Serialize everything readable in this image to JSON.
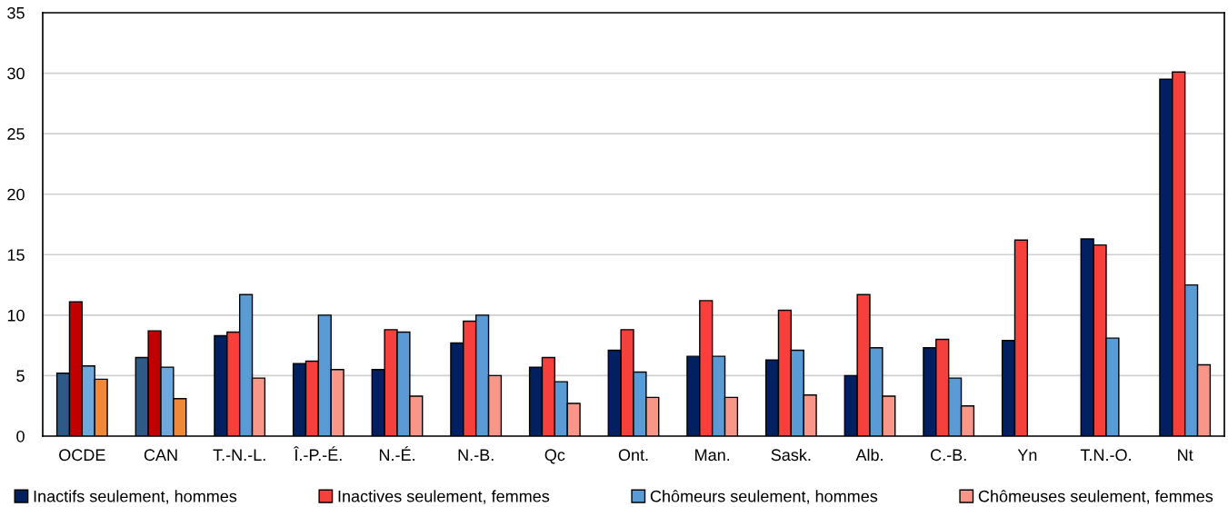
{
  "chart_data": {
    "type": "bar",
    "categories": [
      "OCDE",
      "CAN",
      "T.-N.-L.",
      "Î.-P.-É.",
      "N.-É.",
      "N.-B.",
      "Qc",
      "Ont.",
      "Man.",
      "Sask.",
      "Alb.",
      "C.-B.",
      "Yn",
      "T.N.-O.",
      "Nt"
    ],
    "series": [
      {
        "name": "Inactifs seulement, hommes",
        "color": "#002060",
        "colors": [
          "#2e5a87",
          "#2e5a87",
          "#002060",
          "#002060",
          "#002060",
          "#002060",
          "#002060",
          "#002060",
          "#002060",
          "#002060",
          "#002060",
          "#002060",
          "#002060",
          "#002060",
          "#002060"
        ],
        "values": [
          5.2,
          6.5,
          8.3,
          6.0,
          5.5,
          7.7,
          5.7,
          7.1,
          6.6,
          6.3,
          5.0,
          7.3,
          7.9,
          16.3,
          29.5
        ]
      },
      {
        "name": "Inactives seulement, femmes",
        "color": "#f5403c",
        "colors": [
          "#c00000",
          "#c00000",
          "#f5403c",
          "#f5403c",
          "#f5403c",
          "#f5403c",
          "#f5403c",
          "#f5403c",
          "#f5403c",
          "#f5403c",
          "#f5403c",
          "#f5403c",
          "#f5403c",
          "#f5403c",
          "#f5403c"
        ],
        "values": [
          11.1,
          8.7,
          8.6,
          6.2,
          8.8,
          9.5,
          6.5,
          8.8,
          11.2,
          10.4,
          11.7,
          8.0,
          16.2,
          15.8,
          30.1
        ]
      },
      {
        "name": "Chômeurs seulement, hommes",
        "color": "#5b9bd5",
        "colors": [
          "#6fa8dc",
          "#6fa8dc",
          "#5b9bd5",
          "#5b9bd5",
          "#5b9bd5",
          "#5b9bd5",
          "#5b9bd5",
          "#5b9bd5",
          "#5b9bd5",
          "#5b9bd5",
          "#5b9bd5",
          "#5b9bd5",
          "#5b9bd5",
          "#5b9bd5",
          "#5b9bd5"
        ],
        "values": [
          5.8,
          5.7,
          11.7,
          10.0,
          8.6,
          10.0,
          4.5,
          5.3,
          6.6,
          7.1,
          7.3,
          4.8,
          null,
          8.1,
          12.5
        ]
      },
      {
        "name": "Chômeuses seulement, femmes",
        "color": "#f8968a",
        "colors": [
          "#f0883a",
          "#f0883a",
          "#f8968a",
          "#f8968a",
          "#f8968a",
          "#f8968a",
          "#f8968a",
          "#f8968a",
          "#f8968a",
          "#f8968a",
          "#f8968a",
          "#f8968a",
          "#f8968a",
          "#f8968a",
          "#f8968a"
        ],
        "values": [
          4.7,
          3.1,
          4.8,
          5.5,
          3.3,
          5.0,
          2.7,
          3.2,
          3.2,
          3.4,
          3.3,
          2.5,
          null,
          null,
          5.9
        ]
      }
    ],
    "ylim": [
      0,
      35
    ],
    "yticks": [
      0,
      5,
      10,
      15,
      20,
      25,
      30,
      35
    ],
    "grid": "y",
    "legend": "bottom"
  }
}
